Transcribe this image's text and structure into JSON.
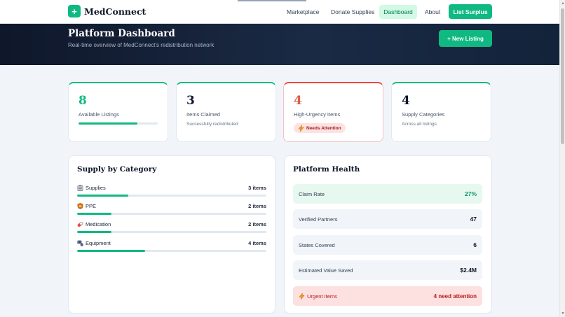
{
  "brand": {
    "icon_glyph": "+",
    "name": "MedConnect"
  },
  "nav": {
    "links": [
      {
        "label": "Marketplace",
        "active": false
      },
      {
        "label": "Donate Supplies",
        "active": false
      },
      {
        "label": "Dashboard",
        "active": true
      },
      {
        "label": "About",
        "active": false
      }
    ],
    "cta": "List Surplus"
  },
  "hero": {
    "title": "Platform Dashboard",
    "subtitle": "Real-time overview of MedConnect's redistribution network",
    "new_listing": "+ New Listing"
  },
  "stats": [
    {
      "value": "8",
      "label": "Available Listings",
      "progress": 0.74
    },
    {
      "value": "3",
      "label": "Items Claimed",
      "sub": "Successfully redistributed"
    },
    {
      "value": "4",
      "label": "High-Urgency Items",
      "badge": "Needs Attention"
    },
    {
      "value": "4",
      "label": "Supply Categories",
      "sub": "Across all listings"
    }
  ],
  "supply": {
    "title": "Supply by Category",
    "categories": [
      {
        "icon": "clipboard-icon",
        "label": "Supplies",
        "count": "3 items",
        "fraction": 0.27
      },
      {
        "icon": "shield-icon",
        "label": "PPE",
        "count": "2 items",
        "fraction": 0.18
      },
      {
        "icon": "pill-icon",
        "label": "Medication",
        "count": "2 items",
        "fraction": 0.18
      },
      {
        "icon": "equipment-icon",
        "label": "Equipment",
        "count": "4 items",
        "fraction": 0.36
      }
    ]
  },
  "health": {
    "title": "Platform Health",
    "rows": [
      {
        "label": "Claim Rate",
        "value": "27%"
      },
      {
        "label": "Verified Partners",
        "value": "47"
      },
      {
        "label": "States Covered",
        "value": "6"
      },
      {
        "label": "Estimated Value Saved",
        "value": "$2.4M"
      },
      {
        "label": "Urgent Items",
        "value": "4 need attention"
      }
    ]
  },
  "colors": {
    "accent": "#10b981",
    "navy": "#0f172a",
    "urgent": "#ef4444"
  }
}
